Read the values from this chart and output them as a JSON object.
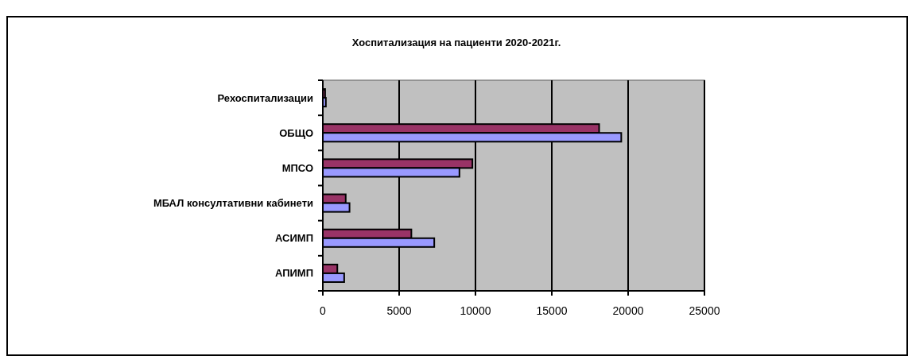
{
  "chart_data": {
    "type": "bar",
    "orientation": "horizontal",
    "title": "Хоспитализация на пациенти 2020-2021г.",
    "categories": [
      "Рехоспитализации",
      "ОБЩО",
      "МПСО",
      "МБАЛ консултативни кабинети",
      "АСИМП",
      "АПИМП"
    ],
    "series": [
      {
        "color": "#993366",
        "values": [
          150,
          18100,
          9800,
          1500,
          5800,
          950
        ]
      },
      {
        "color": "#9999ff",
        "values": [
          200,
          19550,
          8950,
          1750,
          7300,
          1400
        ]
      }
    ],
    "xlim": [
      0,
      25000
    ],
    "xticks": [
      0,
      5000,
      10000,
      15000,
      20000,
      25000
    ],
    "grid": "x"
  }
}
